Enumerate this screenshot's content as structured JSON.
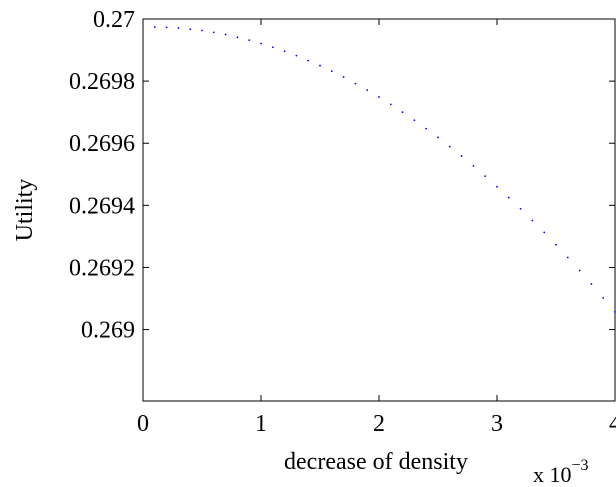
{
  "chart_data": {
    "type": "scatter",
    "xlabel": "decrease of density",
    "ylabel": "Utility",
    "x_multiplier": {
      "prefix": "x 10",
      "exponent": "−3"
    },
    "xlim": [
      0,
      4
    ],
    "ylim": [
      0.26877,
      0.27
    ],
    "x_ticks": [
      0,
      1,
      2,
      3,
      4
    ],
    "x_tick_labels": [
      "0",
      "1",
      "2",
      "3",
      "4"
    ],
    "y_ticks": [
      0.269,
      0.2692,
      0.2694,
      0.2696,
      0.2698,
      0.27
    ],
    "y_tick_labels": [
      "0.269",
      "0.2692",
      "0.2694",
      "0.2696",
      "0.2698",
      "0.27"
    ],
    "grid": false,
    "marker": "dot",
    "series": [
      {
        "color": "#0000ff",
        "x": [
          0.1,
          0.2,
          0.3,
          0.4,
          0.5,
          0.6,
          0.7,
          0.8,
          0.9,
          1.0,
          1.1,
          1.2,
          1.3,
          1.4,
          1.5,
          1.6,
          1.7,
          1.8,
          1.9,
          2.0,
          2.1,
          2.2,
          2.3,
          2.4,
          2.5,
          2.6,
          2.7,
          2.8,
          2.9,
          3.0,
          3.1,
          3.2,
          3.3,
          3.4,
          3.5,
          3.6,
          3.7,
          3.8,
          3.9,
          4.0
        ],
        "y": [
          0.269974,
          0.269973,
          0.269971,
          0.269967,
          0.269963,
          0.269957,
          0.26995,
          0.269941,
          0.269932,
          0.269921,
          0.269909,
          0.269896,
          0.269882,
          0.269866,
          0.26985,
          0.269832,
          0.269813,
          0.269792,
          0.269771,
          0.269749,
          0.269725,
          0.2697,
          0.269674,
          0.269647,
          0.269619,
          0.269589,
          0.269559,
          0.269527,
          0.269494,
          0.26946,
          0.269425,
          0.269389,
          0.269351,
          0.269313,
          0.269273,
          0.269232,
          0.26919,
          0.269147,
          0.269102,
          0.269057
        ]
      }
    ]
  }
}
